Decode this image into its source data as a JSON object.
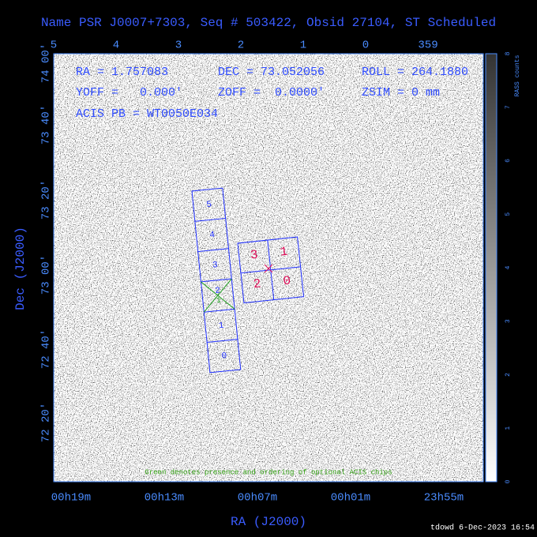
{
  "title": "Name PSR J0007+7303, Seq # 503422, Obsid 27104, ST Scheduled",
  "top_axis_ticks": [
    "5",
    "4",
    "3",
    "2",
    "1",
    "0",
    "359"
  ],
  "left_axis_ticks": [
    "74 00'",
    "73 40'",
    "73 20'",
    "73 00'",
    "72 40'",
    "72 20'"
  ],
  "bottom_axis_ticks": [
    "00h19m",
    "00h13m",
    "00h07m",
    "00h01m",
    "23h55m"
  ],
  "x_label": "RA (J2000)",
  "y_label": "Dec (J2000)",
  "info": [
    "RA = 1.757083",
    "DEC = 73.052056",
    "ROLL = 264.1880",
    "YOFF =   0.000'",
    "ZOFF =  0.0000'",
    "ZSIM = 0 mm",
    "ACIS PB = WT0050E034"
  ],
  "colorbar": {
    "label": "RASS counts",
    "ticks": [
      "0",
      "1",
      "2",
      "3",
      "4",
      "5",
      "6",
      "7",
      "8"
    ]
  },
  "s_array_chips": [
    "5",
    "4",
    "3",
    "2",
    "1",
    "0"
  ],
  "optional_chip_order": "1",
  "i_array_chips": [
    "3",
    "1",
    "2",
    "0"
  ],
  "note": "Green denotes presence and ordering of optional ACIS chips",
  "footer": "tdowd  6-Dec-2023 16:54"
}
